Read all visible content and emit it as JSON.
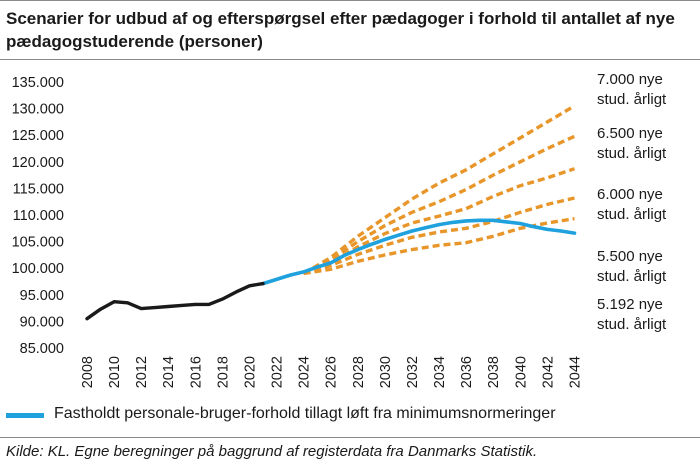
{
  "title_line1": "Scenarier for udbud af og efterspørgsel efter pædagoger i forhold til antallet af nye",
  "title_line2": "pædagogstuderende (personer)",
  "source": "Kilde: KL. Egne beregninger på baggrund af registerdata fra Danmarks Statistik.",
  "colors": {
    "historical": "#1a1a1a",
    "demand": "#1ea1dd",
    "scenario": "#e8962a"
  },
  "chart_data": {
    "type": "line",
    "x_ticks": [
      2008,
      2010,
      2012,
      2014,
      2016,
      2018,
      2020,
      2022,
      2024,
      2026,
      2028,
      2030,
      2032,
      2034,
      2036,
      2038,
      2040,
      2042,
      2044
    ],
    "y_ticks": [
      "85.000",
      "90.000",
      "95.000",
      "100.000",
      "105.000",
      "110.000",
      "115.000",
      "120.000",
      "125.000",
      "130.000",
      "135.000"
    ],
    "ylim": [
      85000,
      135000
    ],
    "xlim": [
      2008,
      2045
    ],
    "legend": "Fastholdt personale-bruger-forhold tillagt løft fra minimumsnormeringer",
    "historical": {
      "x": [
        2008,
        2009,
        2010,
        2011,
        2012,
        2013,
        2014,
        2015,
        2016,
        2017,
        2018,
        2019,
        2020,
        2021
      ],
      "y": [
        90500,
        92300,
        93700,
        93500,
        92400,
        92600,
        92800,
        93000,
        93200,
        93200,
        94200,
        95500,
        96700,
        97100
      ]
    },
    "demand": {
      "name": "Fastholdt personale-bruger-forhold tillagt løft fra minimumsnormeringer",
      "x": [
        2021,
        2022,
        2023,
        2024,
        2025,
        2026,
        2027,
        2028,
        2029,
        2030,
        2031,
        2032,
        2033,
        2034,
        2035,
        2036,
        2037,
        2038,
        2039,
        2040,
        2041,
        2042,
        2043,
        2044
      ],
      "y": [
        97100,
        97900,
        98700,
        99300,
        100200,
        101000,
        102400,
        103500,
        104500,
        105400,
        106200,
        107000,
        107600,
        108200,
        108600,
        108900,
        109000,
        109000,
        108700,
        108400,
        107800,
        107300,
        107000,
        106600
      ]
    },
    "scenarios": [
      {
        "label": [
          "7.000 nye",
          "stud. årligt"
        ],
        "x": [
          2024,
          2026,
          2028,
          2030,
          2032,
          2034,
          2036,
          2038,
          2040,
          2042,
          2044
        ],
        "y": [
          99000,
          102000,
          106000,
          109500,
          113000,
          116000,
          118500,
          121500,
          124500,
          127500,
          130500
        ]
      },
      {
        "label": [
          "6.500 nye",
          "stud. årligt"
        ],
        "x": [
          2024,
          2026,
          2028,
          2030,
          2032,
          2034,
          2036,
          2038,
          2040,
          2042,
          2044
        ],
        "y": [
          99000,
          101500,
          105000,
          108000,
          110500,
          112500,
          114800,
          117500,
          120000,
          122500,
          124800
        ]
      },
      {
        "label": [
          "6.000 nye",
          "stud. årligt"
        ],
        "x": [
          2024,
          2026,
          2028,
          2030,
          2032,
          2034,
          2036,
          2038,
          2040,
          2042,
          2044
        ],
        "y": [
          99000,
          101000,
          104000,
          106500,
          108500,
          109800,
          111200,
          113500,
          115500,
          117000,
          118700
        ]
      },
      {
        "label": [
          "5.500 nye",
          "stud. årligt"
        ],
        "x": [
          2024,
          2026,
          2028,
          2030,
          2032,
          2034,
          2036,
          2038,
          2040,
          2042,
          2044
        ],
        "y": [
          99000,
          100500,
          102600,
          104300,
          105800,
          106800,
          107500,
          108800,
          110500,
          112000,
          113200
        ]
      },
      {
        "label": [
          "5.192 nye",
          "stud. årligt"
        ],
        "x": [
          2024,
          2026,
          2028,
          2030,
          2032,
          2034,
          2036,
          2038,
          2040,
          2042,
          2044
        ],
        "y": [
          99000,
          99800,
          101300,
          102500,
          103500,
          104300,
          104800,
          106000,
          107500,
          108500,
          109300
        ]
      }
    ]
  }
}
